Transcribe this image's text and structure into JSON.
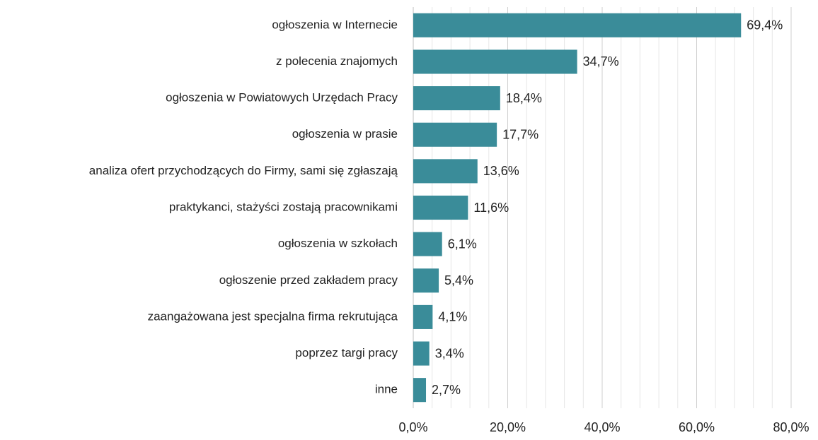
{
  "chart_data": {
    "type": "bar",
    "orientation": "horizontal",
    "categories": [
      "ogłoszenia w Internecie",
      "z polecenia znajomych",
      "ogłoszenia w Powiatowych Urzędach Pracy",
      "ogłoszenia w prasie",
      "analiza ofert przychodzących do Firmy, sami się zgłaszają",
      "praktykanci, stażyści zostają pracownikami",
      "ogłoszenia w szkołach",
      "ogłoszenie przed zakładem pracy",
      "zaangażowana jest specjalna firma rekrutująca",
      "poprzez targi pracy",
      "inne"
    ],
    "values": [
      69.4,
      34.7,
      18.4,
      17.7,
      13.6,
      11.6,
      6.1,
      5.4,
      4.1,
      3.4,
      2.7
    ],
    "value_labels": [
      "69,4%",
      "34,7%",
      "18,4%",
      "17,7%",
      "13,6%",
      "11,6%",
      "6,1%",
      "5,4%",
      "4,1%",
      "3,4%",
      "2,7%"
    ],
    "color": "#3a8c99",
    "xlim": [
      0,
      80
    ],
    "xticks": [
      {
        "value": 0,
        "label": "0,0%"
      },
      {
        "value": 20,
        "label": "20,0%"
      },
      {
        "value": 40,
        "label": "40,0%"
      },
      {
        "value": 60,
        "label": "60,0%"
      },
      {
        "value": 80,
        "label": "80,0%"
      }
    ],
    "xminorticks": [
      4,
      8,
      12,
      16,
      24,
      28,
      32,
      36,
      44,
      48,
      52,
      56,
      64,
      68,
      72,
      76
    ],
    "grid": true
  }
}
